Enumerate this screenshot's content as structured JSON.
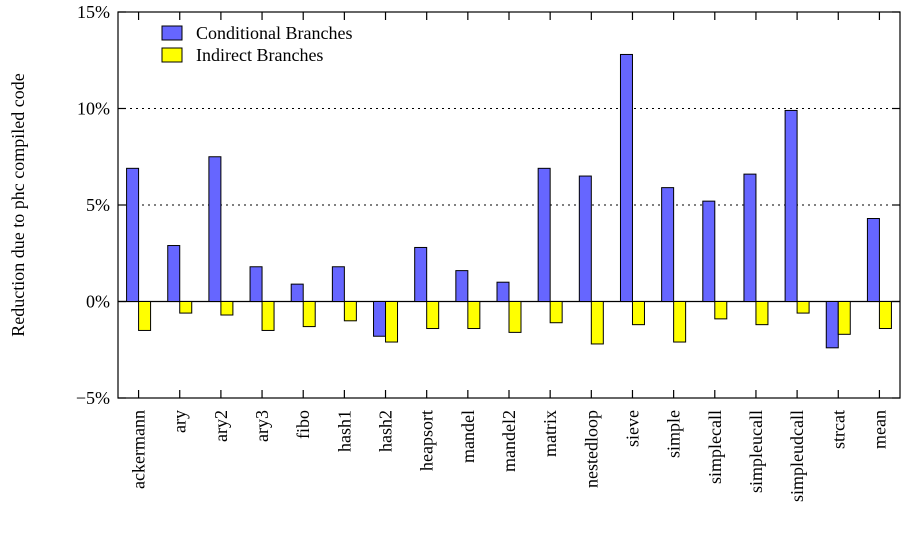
{
  "chart_data": {
    "type": "bar",
    "ylabel": "Reduction due to phc compiled code",
    "ylim": [
      -5,
      15
    ],
    "yticks": [
      -5,
      0,
      5,
      10,
      15
    ],
    "ytick_labels": [
      "−5%",
      "0%",
      "5%",
      "10%",
      "15%"
    ],
    "grid": "horizontal dotted at 5% and 10%",
    "legend": "top-left",
    "categories": [
      "ackermann",
      "ary",
      "ary2",
      "ary3",
      "fibo",
      "hash1",
      "hash2",
      "heapsort",
      "mandel",
      "mandel2",
      "matrix",
      "nestedloop",
      "sieve",
      "simple",
      "simplecall",
      "simpleucall",
      "simpleudcall",
      "strcat",
      "mean"
    ],
    "series": [
      {
        "name": "Conditional Branches",
        "color": "#6666ff",
        "values": [
          6.9,
          2.9,
          7.5,
          1.8,
          0.9,
          1.8,
          -1.8,
          2.8,
          1.6,
          1.0,
          6.9,
          6.5,
          12.8,
          5.9,
          5.2,
          6.6,
          9.9,
          -2.4,
          4.3
        ]
      },
      {
        "name": "Indirect Branches",
        "color": "#ffff00",
        "values": [
          -1.5,
          -0.6,
          -0.7,
          -1.5,
          -1.3,
          -1.0,
          -2.1,
          -1.4,
          -1.4,
          -1.6,
          -1.1,
          -2.2,
          -1.2,
          -2.1,
          -0.9,
          -1.2,
          -0.6,
          -1.7,
          -1.4
        ]
      }
    ]
  }
}
